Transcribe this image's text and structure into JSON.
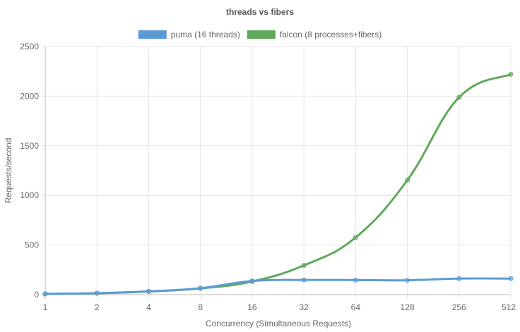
{
  "chart_data": {
    "type": "line",
    "title": "threads vs fibers",
    "xlabel": "Concurrency (Simultaneous Requests)",
    "ylabel": "Requests/second",
    "categories": [
      "1",
      "2",
      "4",
      "8",
      "16",
      "32",
      "64",
      "128",
      "256",
      "512"
    ],
    "ylim": [
      0,
      2500
    ],
    "yticks": [
      0,
      500,
      1000,
      1500,
      2000,
      2500
    ],
    "grid": true,
    "legend_position": "top",
    "series": [
      {
        "name": "puma (16 threads)",
        "color": "#5b9bd5",
        "values": [
          8,
          15,
          33,
          65,
          138,
          148,
          147,
          145,
          162,
          162
        ]
      },
      {
        "name": "falcon (8 processes+fibers)",
        "color": "#5fa95a",
        "values": [
          8,
          14,
          32,
          63,
          133,
          295,
          576,
          1153,
          1988,
          2220
        ]
      }
    ]
  }
}
